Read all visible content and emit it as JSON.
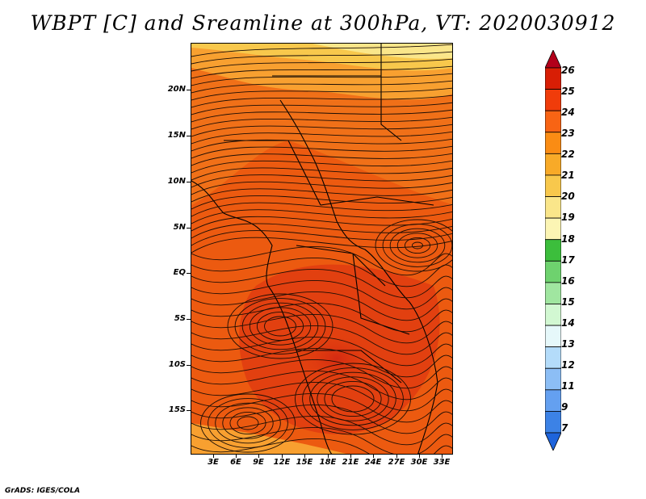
{
  "title": "WBPT [C] and Sreamline at 300hPa, VT: 2020030912",
  "credit": "GrADS: IGES/COLA",
  "map": {
    "lat_labels": [
      "20N",
      "15N",
      "10N",
      "5N",
      "EQ",
      "5S",
      "10S",
      "15S"
    ],
    "lon_labels": [
      "3E",
      "6E",
      "9E",
      "12E",
      "15E",
      "18E",
      "21E",
      "24E",
      "27E",
      "30E",
      "33E"
    ]
  },
  "colorbar": {
    "labels": [
      "26",
      "25",
      "24",
      "23",
      "22",
      "21",
      "20",
      "19",
      "18",
      "17",
      "16",
      "15",
      "14",
      "13",
      "12",
      "11",
      "9",
      "7"
    ],
    "colors": [
      "#b2001a",
      "#d81e05",
      "#f03c0a",
      "#f86414",
      "#fa8c14",
      "#f8aa28",
      "#f8c84c",
      "#fae68a",
      "#fcf5b4",
      "#3cbe3c",
      "#6ed26e",
      "#a0e6a0",
      "#d2f8d2",
      "#e6f8fa",
      "#b4dcfa",
      "#8cbef5",
      "#64a0f0",
      "#3c82e6",
      "#1e64dc"
    ]
  }
}
